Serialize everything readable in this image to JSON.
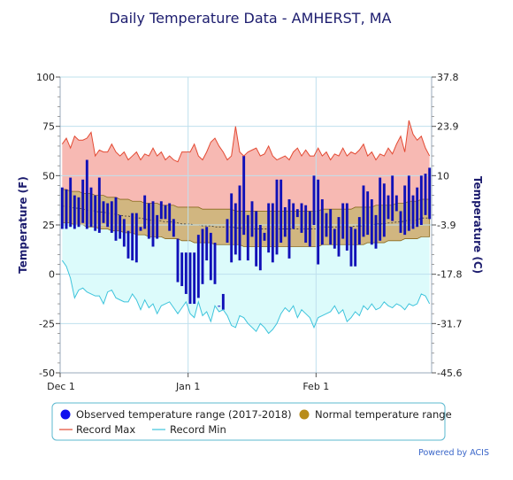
{
  "chart_data": {
    "type": "bar",
    "title": "Daily Temperature Data - AMHERST, MA",
    "ylabel": "Temperature (F)",
    "ylabel_right": "Temperature (C)",
    "ylim": [
      -50,
      100
    ],
    "yticks": [
      "100",
      "75",
      "50",
      "25",
      "0",
      "-25",
      "-50"
    ],
    "yticks_right": [
      "37.8",
      "23.9",
      "10",
      "-3.9",
      "-17.8",
      "-31.7",
      "-45.6"
    ],
    "x_ticks": [
      {
        "label": "Dec 1",
        "day": 0
      },
      {
        "label": "Jan 1",
        "day": 31
      },
      {
        "label": "Feb 1",
        "day": 62
      }
    ],
    "day_count": 90,
    "grid": true,
    "colors": {
      "observed": "#1010b8",
      "normal": "#c9a96a",
      "record_max_line": "#e34a33",
      "record_max_fill": "#f7b9b3",
      "record_min_line": "#3ec4dc",
      "record_min_fill": "#dcfbfb",
      "grid": "#bfe0ee"
    },
    "series": [
      {
        "name": "Observed temperature range (2017-2018)",
        "kind": "range-bars",
        "high": [
          44,
          43,
          49,
          40,
          39,
          48,
          58,
          44,
          40,
          49,
          37,
          36,
          37,
          39,
          30,
          28,
          22,
          31,
          31,
          24,
          40,
          36,
          37,
          30,
          37,
          35,
          36,
          28,
          18,
          11,
          11,
          11,
          11,
          20,
          23,
          24,
          21,
          16,
          -16,
          -10,
          28,
          41,
          36,
          45,
          60,
          30,
          37,
          32,
          25,
          21,
          36,
          36,
          48,
          48,
          34,
          38,
          36,
          33,
          36,
          35,
          32,
          50,
          48,
          38,
          31,
          33,
          23,
          29,
          36,
          36,
          24,
          23,
          29,
          45,
          42,
          38,
          30,
          49,
          46,
          40,
          50,
          40,
          32,
          45,
          50,
          40,
          44,
          50,
          51,
          54
        ],
        "low": [
          23,
          23,
          24,
          23,
          24,
          26,
          23,
          24,
          22,
          21,
          26,
          24,
          21,
          17,
          18,
          14,
          8,
          7,
          6,
          22,
          23,
          18,
          14,
          18,
          28,
          28,
          22,
          19,
          -4,
          -6,
          -10,
          -15,
          -15,
          -12,
          -5,
          7,
          -3,
          -5,
          -16,
          -18,
          16,
          6,
          10,
          7,
          20,
          7,
          19,
          4,
          2,
          17,
          11,
          6,
          10,
          16,
          19,
          8,
          23,
          29,
          21,
          16,
          14,
          25,
          5,
          15,
          19,
          15,
          13,
          9,
          18,
          12,
          4,
          4,
          15,
          19,
          20,
          15,
          13,
          17,
          19,
          28,
          27,
          32,
          21,
          20,
          22,
          23,
          24,
          25,
          30,
          28
        ]
      },
      {
        "name": "Normal temperature range",
        "kind": "band",
        "high": [
          43,
          43,
          42,
          42,
          42,
          41,
          41,
          41,
          40,
          40,
          40,
          39,
          39,
          39,
          38,
          38,
          38,
          37,
          37,
          37,
          36,
          36,
          36,
          36,
          35,
          35,
          35,
          35,
          34,
          34,
          34,
          34,
          34,
          34,
          33,
          33,
          33,
          33,
          33,
          33,
          33,
          33,
          32,
          32,
          32,
          32,
          32,
          32,
          32,
          32,
          32,
          32,
          32,
          32,
          32,
          32,
          32,
          32,
          32,
          32,
          32,
          32,
          32,
          33,
          33,
          33,
          33,
          33,
          33,
          33,
          33,
          34,
          34,
          34,
          34,
          34,
          35,
          35,
          35,
          35,
          35,
          36,
          36,
          36,
          37,
          37,
          37,
          38,
          38,
          38
        ],
        "low": [
          26,
          26,
          26,
          25,
          25,
          25,
          24,
          24,
          24,
          23,
          23,
          23,
          22,
          22,
          22,
          21,
          21,
          21,
          20,
          20,
          20,
          19,
          19,
          19,
          19,
          18,
          18,
          18,
          18,
          17,
          17,
          17,
          16,
          16,
          16,
          16,
          16,
          15,
          15,
          15,
          15,
          15,
          15,
          15,
          14,
          14,
          14,
          14,
          14,
          14,
          14,
          14,
          14,
          14,
          14,
          14,
          14,
          14,
          14,
          14,
          14,
          14,
          14,
          15,
          15,
          15,
          15,
          15,
          15,
          15,
          15,
          15,
          15,
          15,
          16,
          16,
          16,
          16,
          16,
          17,
          17,
          17,
          17,
          18,
          18,
          18,
          18,
          19,
          19,
          19
        ]
      },
      {
        "name": "Record Max",
        "kind": "line",
        "values": [
          66,
          69,
          64,
          70,
          68,
          68,
          69,
          72,
          60,
          63,
          62,
          62,
          66,
          62,
          60,
          62,
          58,
          60,
          62,
          58,
          61,
          60,
          64,
          60,
          62,
          58,
          60,
          58,
          57,
          62,
          62,
          62,
          66,
          60,
          58,
          62,
          67,
          69,
          65,
          62,
          58,
          60,
          75,
          62,
          60,
          62,
          63,
          64,
          60,
          61,
          65,
          60,
          58,
          59,
          60,
          58,
          62,
          64,
          60,
          63,
          60,
          60,
          64,
          60,
          62,
          58,
          61,
          60,
          64,
          60,
          62,
          61,
          63,
          66,
          60,
          62,
          58,
          61,
          60,
          64,
          61,
          66,
          70,
          62,
          78,
          71,
          68,
          70,
          64,
          60
        ]
      },
      {
        "name": "Record Min",
        "kind": "line",
        "values": [
          7,
          4,
          -2,
          -12,
          -8,
          -7,
          -9,
          -10,
          -11,
          -11,
          -15,
          -9,
          -8,
          -12,
          -13,
          -14,
          -14,
          -10,
          -13,
          -18,
          -13,
          -17,
          -15,
          -20,
          -16,
          -15,
          -14,
          -17,
          -20,
          -17,
          -14,
          -20,
          -22,
          -14,
          -21,
          -19,
          -24,
          -16,
          -19,
          -18,
          -21,
          -26,
          -27,
          -21,
          -22,
          -25,
          -27,
          -29,
          -25,
          -27,
          -30,
          -28,
          -25,
          -20,
          -17,
          -19,
          -16,
          -22,
          -18,
          -20,
          -22,
          -27,
          -22,
          -21,
          -20,
          -19,
          -16,
          -20,
          -18,
          -24,
          -22,
          -19,
          -21,
          -16,
          -18,
          -15,
          -18,
          -17,
          -14,
          -16,
          -17,
          -15,
          -16,
          -18,
          -15,
          -16,
          -15,
          -10,
          -11,
          -15
        ]
      }
    ],
    "legend": {
      "placement": "bottom",
      "items": [
        {
          "label": "Observed temperature range (2017-2018)",
          "symbol": "dot",
          "color": "#1010ee"
        },
        {
          "label": "Normal temperature range",
          "symbol": "dot",
          "color": "#b88c1a"
        },
        {
          "label": "Record Max",
          "symbol": "line",
          "color": "#e34a33"
        },
        {
          "label": "Record Min",
          "symbol": "line",
          "color": "#3ec4dc"
        }
      ]
    },
    "credit": "Powered by ACIS"
  }
}
